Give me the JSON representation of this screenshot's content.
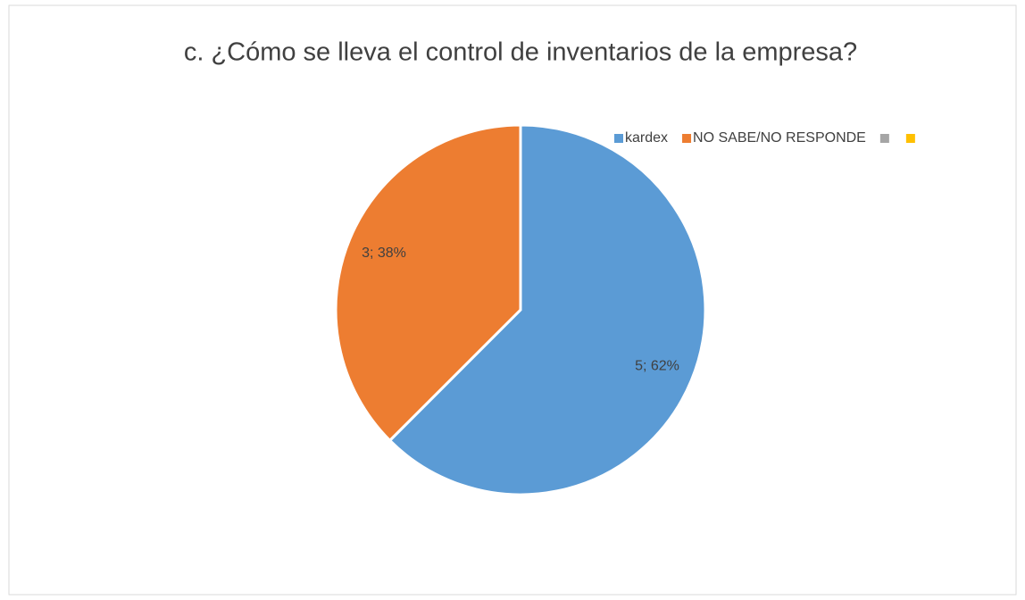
{
  "chart_data": {
    "type": "pie",
    "title": "c. ¿Cómo se lleva el control de inventarios de la empresa?",
    "categories": [
      "kardex",
      "NO SABE/NO RESPONDE",
      null,
      null
    ],
    "values": [
      5,
      3,
      0,
      0
    ],
    "value_labels": [
      "5; 62%",
      "3; 38%",
      null,
      null
    ],
    "colors": [
      "#5b9bd5",
      "#ed7d31",
      "#a5a5a5",
      "#ffc000"
    ],
    "legend": "top-right"
  }
}
